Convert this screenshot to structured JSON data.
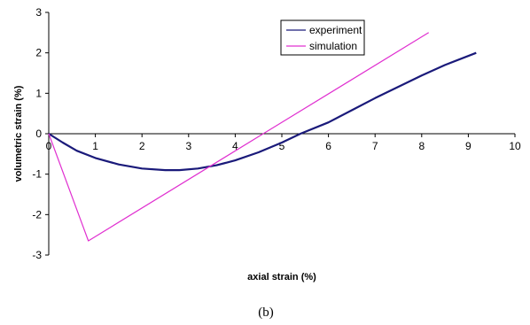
{
  "chart_data": {
    "type": "line",
    "caption": "(b)",
    "xlabel": "axial strain (%)",
    "ylabel": "volumetric strain (%)",
    "xlim": [
      0,
      10
    ],
    "ylim": [
      -3,
      3
    ],
    "xticks": [
      0,
      1,
      2,
      3,
      4,
      5,
      6,
      7,
      8,
      9,
      10
    ],
    "yticks": [
      3,
      2,
      1,
      0,
      -1,
      -2,
      -3
    ],
    "grid": false,
    "legend_position": "top-right",
    "series": [
      {
        "name": "experiment",
        "color": "#1a1a7a",
        "x": [
          0,
          0.3,
          0.6,
          1.0,
          1.5,
          2.0,
          2.5,
          2.8,
          3.2,
          3.6,
          4.0,
          4.5,
          5.0,
          5.4,
          6.0,
          6.5,
          7.0,
          7.5,
          8.0,
          8.5,
          9.17
        ],
        "y": [
          0,
          -0.22,
          -0.42,
          -0.6,
          -0.76,
          -0.86,
          -0.9,
          -0.9,
          -0.86,
          -0.78,
          -0.66,
          -0.46,
          -0.22,
          0.0,
          0.28,
          0.58,
          0.88,
          1.16,
          1.44,
          1.7,
          2.0
        ]
      },
      {
        "name": "simulation",
        "color": "#e030d0",
        "x": [
          0,
          0.85,
          4.6,
          8.15
        ],
        "y": [
          0,
          -2.65,
          0.0,
          2.5
        ]
      }
    ]
  }
}
